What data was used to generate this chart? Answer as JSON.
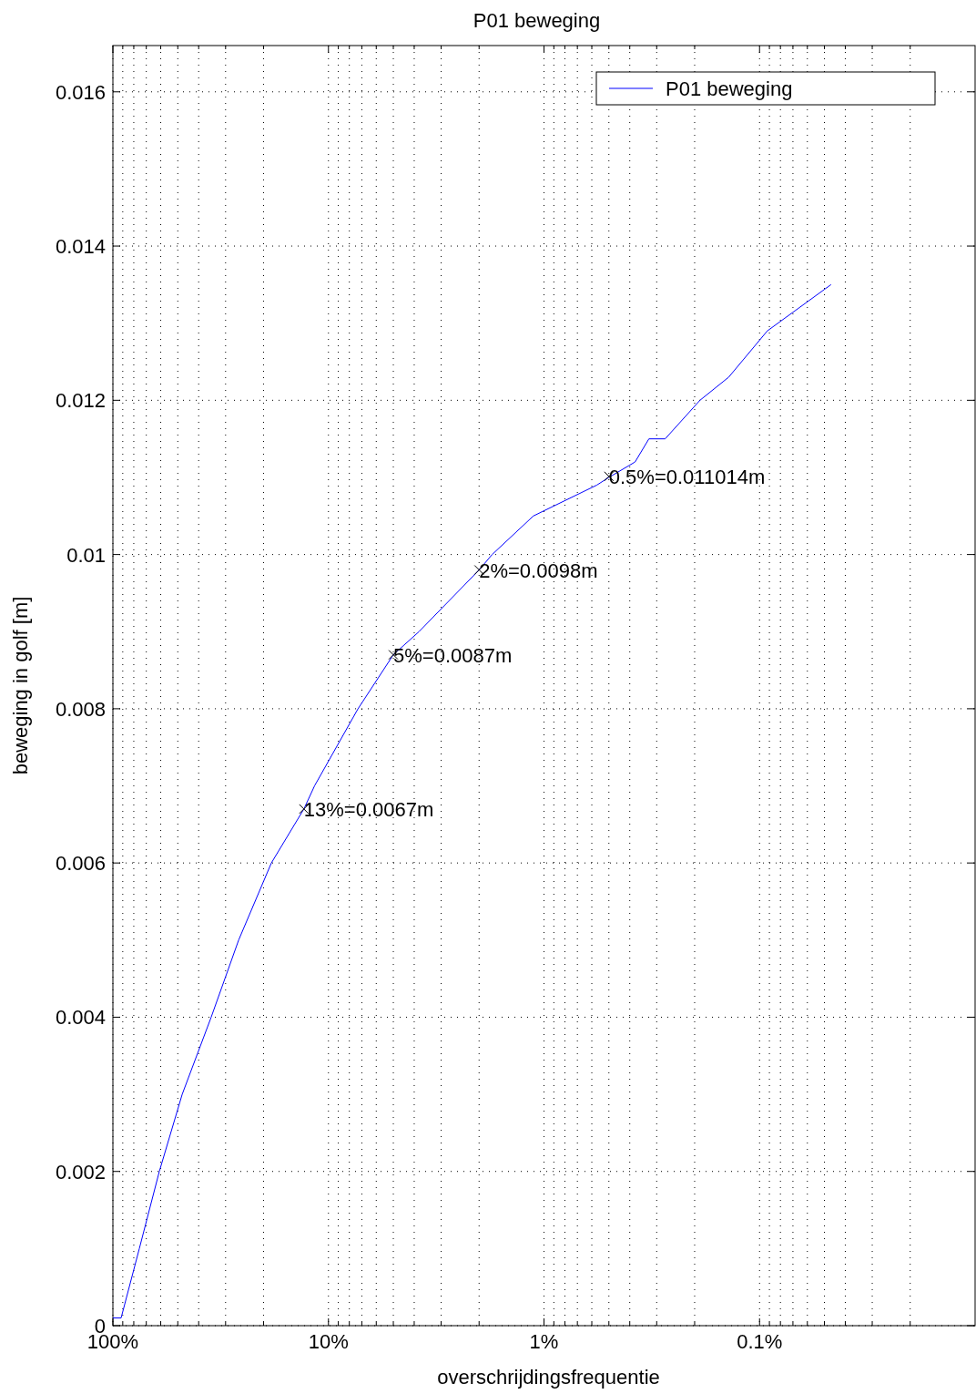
{
  "chart_data": {
    "type": "line",
    "title": "P01 beweging",
    "xlabel": "overschrijdingsfrequentie",
    "ylabel": "beweging in golf [m]",
    "log": "x",
    "grid": true,
    "legend": "top right",
    "line_style": "solid",
    "xlim": [
      100,
      0.01
    ],
    "xticks": [
      {
        "value": 100,
        "label": "100%"
      },
      {
        "value": 10,
        "label": "10%"
      },
      {
        "value": 1,
        "label": "1%"
      },
      {
        "value": 0.1,
        "label": "0.1%"
      }
    ],
    "ylim": [
      0,
      0.0166
    ],
    "yticks": [
      0,
      0.002,
      0.004,
      0.006,
      0.008,
      0.01,
      0.012,
      0.014,
      0.016
    ],
    "series": [
      {
        "name": "P01 beweging",
        "color": "#0000ff",
        "x": [
          100,
          91.6,
          75.4,
          60.9,
          47.7,
          35.0,
          26.1,
          18.4,
          13,
          11.6,
          7.29,
          5,
          3.8,
          2,
          1.74,
          1.12,
          0.569,
          0.5,
          0.378,
          0.326,
          0.274,
          0.189,
          0.139,
          0.092,
          0.0466
        ],
        "values": [
          0.0001,
          0.0001,
          0.001,
          0.002,
          0.003,
          0.004,
          0.005,
          0.006,
          0.0067,
          0.007,
          0.008,
          0.0087,
          0.009,
          0.0098,
          0.01,
          0.0105,
          0.0109,
          0.011,
          0.0112,
          0.0115,
          0.0115,
          0.012,
          0.0123,
          0.0129,
          0.0135
        ]
      }
    ],
    "annotations": [
      {
        "text": "13%=0.0067m",
        "x": 13,
        "y": 0.0067
      },
      {
        "text": "5%=0.0087m",
        "x": 5,
        "y": 0.0087
      },
      {
        "text": "2%=0.0098m",
        "x": 2,
        "y": 0.0098
      },
      {
        "text": "0.5%=0.011014m",
        "x": 0.5,
        "y": 0.011014
      }
    ]
  }
}
